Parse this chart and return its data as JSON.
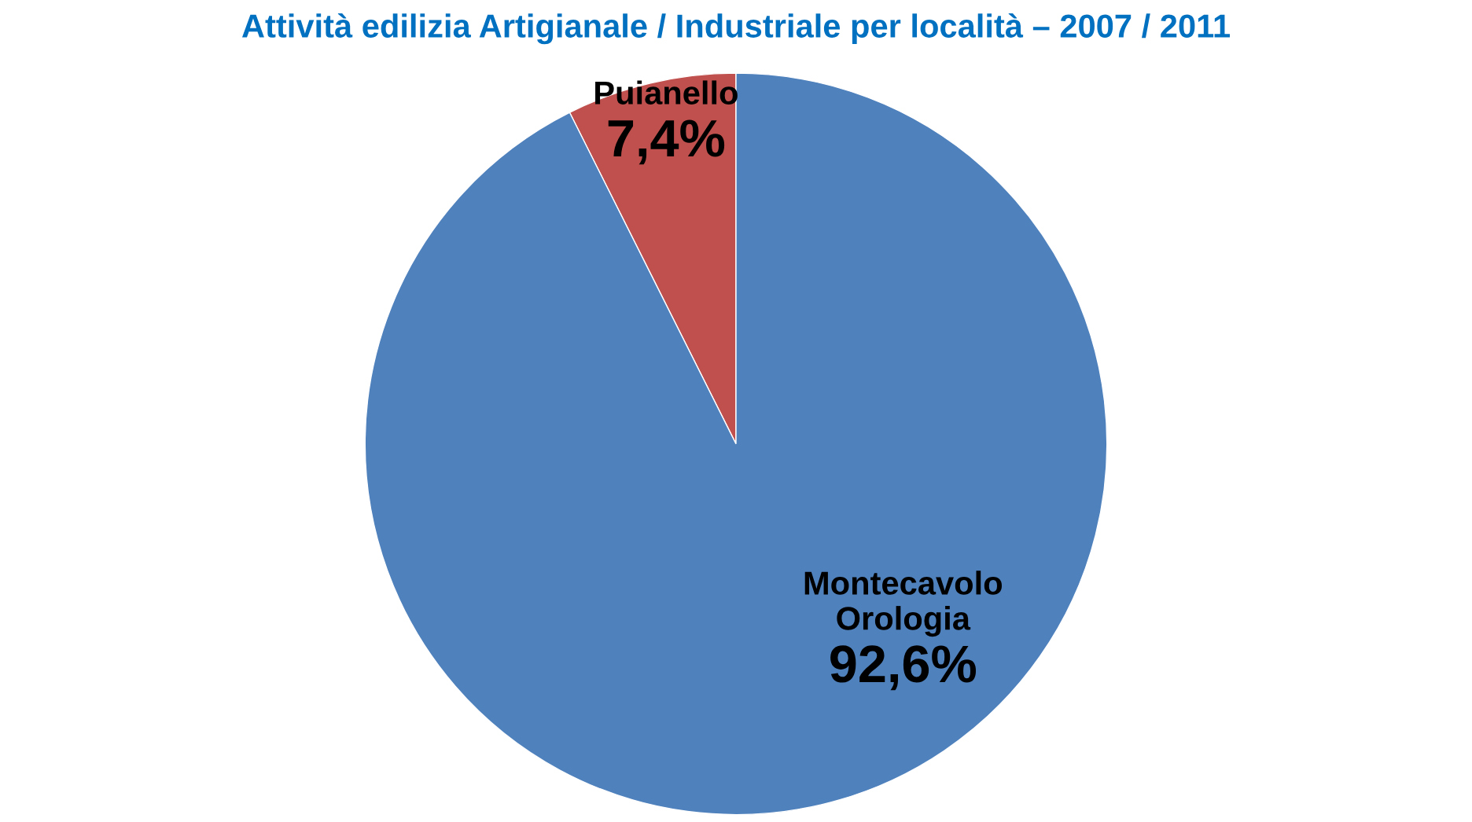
{
  "chart_data": {
    "type": "pie",
    "title": "Attività edilizia Artigianale / Industriale per località – 2007 / 2011",
    "categories": [
      "Puianello",
      "Montecavolo\nOrologia"
    ],
    "values": [
      7.4,
      92.6
    ],
    "value_labels": [
      "7,4%",
      "92,6%"
    ],
    "colors": [
      "#c0504d",
      "#4f81bd"
    ],
    "legend": false
  }
}
